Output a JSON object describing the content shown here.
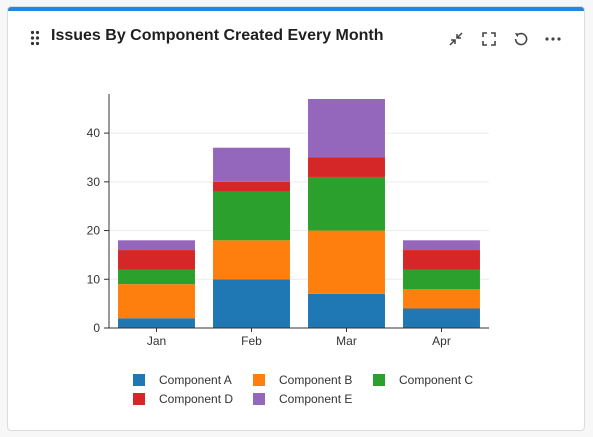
{
  "widget": {
    "title": "Issues By Component Created Every Month",
    "accent_color": "#1e88e5",
    "toolbar": [
      {
        "name": "collapse-icon",
        "label": "Collapse"
      },
      {
        "name": "fullscreen-icon",
        "label": "Full screen"
      },
      {
        "name": "refresh-icon",
        "label": "Refresh"
      },
      {
        "name": "more-options-icon",
        "label": "More options"
      }
    ]
  },
  "chart_data": {
    "type": "bar",
    "stacked": true,
    "categories": [
      "Jan",
      "Feb",
      "Mar",
      "Apr"
    ],
    "series": [
      {
        "name": "Component A",
        "color": "#1f77b4",
        "values": [
          2,
          10,
          7,
          4
        ]
      },
      {
        "name": "Component B",
        "color": "#ff7f0e",
        "values": [
          7,
          8,
          13,
          4
        ]
      },
      {
        "name": "Component C",
        "color": "#2ca02c",
        "values": [
          3,
          10,
          11,
          4
        ]
      },
      {
        "name": "Component D",
        "color": "#d62728",
        "values": [
          4,
          2,
          4,
          4
        ]
      },
      {
        "name": "Component E",
        "color": "#9467bd",
        "values": [
          2,
          7,
          12,
          2
        ]
      }
    ],
    "yticks": [
      0,
      10,
      20,
      30,
      40
    ],
    "ylim": [
      0,
      47
    ],
    "grid": true,
    "legend_position": "bottom"
  }
}
